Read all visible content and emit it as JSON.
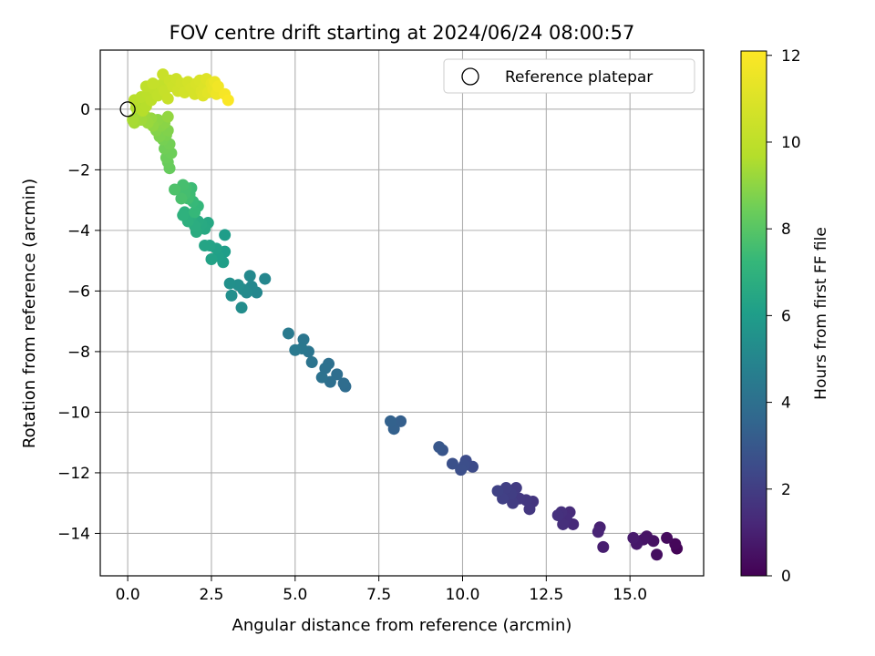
{
  "chart_data": {
    "type": "scatter",
    "title": "FOV centre drift starting at 2024/06/24 08:00:57",
    "xlabel": "Angular distance from reference (arcmin)",
    "ylabel": "Rotation from reference (arcmin)",
    "xlim": [
      -0.82,
      17.2
    ],
    "ylim": [
      -15.4,
      1.95
    ],
    "xticks": [
      0.0,
      2.5,
      5.0,
      7.5,
      10.0,
      12.5,
      15.0
    ],
    "xtick_labels": [
      "0.0",
      "2.5",
      "5.0",
      "7.5",
      "10.0",
      "12.5",
      "15.0"
    ],
    "yticks": [
      0,
      -2,
      -4,
      -6,
      -8,
      -10,
      -12,
      -14
    ],
    "ytick_labels": [
      "0",
      "−2",
      "−4",
      "−6",
      "−8",
      "−10",
      "−12",
      "−14"
    ],
    "grid": true,
    "legend": {
      "placement": "top-right",
      "entries": [
        {
          "label": "Reference platepar",
          "marker": "open-circle"
        }
      ]
    },
    "reference_point": {
      "x": 0.0,
      "y": 0.0
    },
    "colorbar": {
      "label": "Hours from first FF file",
      "colormap": "viridis",
      "range": [
        0,
        12.1
      ],
      "ticks": [
        0,
        2,
        4,
        6,
        8,
        10,
        12
      ],
      "tick_labels": [
        "0",
        "2",
        "4",
        "6",
        "8",
        "10",
        "12"
      ]
    },
    "points": [
      {
        "x": 16.4,
        "y": -14.5,
        "c": 0.1
      },
      {
        "x": 16.35,
        "y": -14.35,
        "c": 0.2
      },
      {
        "x": 16.1,
        "y": -14.15,
        "c": 0.3
      },
      {
        "x": 15.8,
        "y": -14.7,
        "c": 0.4
      },
      {
        "x": 15.7,
        "y": -14.25,
        "c": 0.5
      },
      {
        "x": 15.5,
        "y": -14.1,
        "c": 0.55
      },
      {
        "x": 15.4,
        "y": -14.2,
        "c": 0.6
      },
      {
        "x": 15.2,
        "y": -14.35,
        "c": 0.7
      },
      {
        "x": 15.1,
        "y": -14.15,
        "c": 0.8
      },
      {
        "x": 14.2,
        "y": -14.45,
        "c": 0.9
      },
      {
        "x": 14.1,
        "y": -13.8,
        "c": 1.0
      },
      {
        "x": 14.05,
        "y": -13.95,
        "c": 1.1
      },
      {
        "x": 13.3,
        "y": -13.7,
        "c": 1.3
      },
      {
        "x": 13.2,
        "y": -13.3,
        "c": 1.35
      },
      {
        "x": 13.1,
        "y": -13.5,
        "c": 1.4
      },
      {
        "x": 13.0,
        "y": -13.7,
        "c": 1.45
      },
      {
        "x": 12.95,
        "y": -13.3,
        "c": 1.5
      },
      {
        "x": 12.85,
        "y": -13.4,
        "c": 1.55
      },
      {
        "x": 12.1,
        "y": -12.95,
        "c": 1.7
      },
      {
        "x": 12.0,
        "y": -13.2,
        "c": 1.75
      },
      {
        "x": 11.9,
        "y": -12.9,
        "c": 1.8
      },
      {
        "x": 11.7,
        "y": -12.85,
        "c": 1.85
      },
      {
        "x": 11.6,
        "y": -12.5,
        "c": 1.9
      },
      {
        "x": 11.5,
        "y": -13.0,
        "c": 1.95
      },
      {
        "x": 11.45,
        "y": -12.7,
        "c": 2.0
      },
      {
        "x": 11.3,
        "y": -12.5,
        "c": 2.05
      },
      {
        "x": 11.2,
        "y": -12.85,
        "c": 2.1
      },
      {
        "x": 11.05,
        "y": -12.6,
        "c": 2.15
      },
      {
        "x": 10.3,
        "y": -11.8,
        "c": 2.5
      },
      {
        "x": 10.1,
        "y": -11.6,
        "c": 2.55
      },
      {
        "x": 10.05,
        "y": -11.75,
        "c": 2.6
      },
      {
        "x": 9.95,
        "y": -11.9,
        "c": 2.65
      },
      {
        "x": 9.7,
        "y": -11.7,
        "c": 2.7
      },
      {
        "x": 9.4,
        "y": -11.25,
        "c": 2.9
      },
      {
        "x": 9.3,
        "y": -11.15,
        "c": 2.95
      },
      {
        "x": 8.15,
        "y": -10.3,
        "c": 3.3
      },
      {
        "x": 7.95,
        "y": -10.55,
        "c": 3.35
      },
      {
        "x": 7.85,
        "y": -10.3,
        "c": 3.4
      },
      {
        "x": 6.5,
        "y": -9.15,
        "c": 3.8
      },
      {
        "x": 6.45,
        "y": -9.05,
        "c": 3.85
      },
      {
        "x": 6.25,
        "y": -8.75,
        "c": 3.9
      },
      {
        "x": 6.05,
        "y": -9.0,
        "c": 3.95
      },
      {
        "x": 6.0,
        "y": -8.4,
        "c": 4.0
      },
      {
        "x": 5.9,
        "y": -8.55,
        "c": 4.05
      },
      {
        "x": 5.8,
        "y": -8.85,
        "c": 4.1
      },
      {
        "x": 5.5,
        "y": -8.35,
        "c": 4.2
      },
      {
        "x": 5.4,
        "y": -8.0,
        "c": 4.25
      },
      {
        "x": 5.25,
        "y": -7.6,
        "c": 4.3
      },
      {
        "x": 5.2,
        "y": -7.9,
        "c": 4.35
      },
      {
        "x": 5.0,
        "y": -7.95,
        "c": 4.4
      },
      {
        "x": 4.8,
        "y": -7.4,
        "c": 4.45
      },
      {
        "x": 4.1,
        "y": -5.6,
        "c": 5.0
      },
      {
        "x": 3.85,
        "y": -6.05,
        "c": 5.05
      },
      {
        "x": 3.7,
        "y": -5.85,
        "c": 5.1
      },
      {
        "x": 3.65,
        "y": -5.5,
        "c": 5.15
      },
      {
        "x": 3.55,
        "y": -6.05,
        "c": 5.2
      },
      {
        "x": 3.45,
        "y": -5.95,
        "c": 5.25
      },
      {
        "x": 3.4,
        "y": -6.55,
        "c": 5.3
      },
      {
        "x": 3.3,
        "y": -5.8,
        "c": 5.35
      },
      {
        "x": 3.1,
        "y": -6.15,
        "c": 5.4
      },
      {
        "x": 3.05,
        "y": -5.75,
        "c": 5.45
      },
      {
        "x": 2.9,
        "y": -4.15,
        "c": 6.0
      },
      {
        "x": 2.9,
        "y": -4.7,
        "c": 6.05
      },
      {
        "x": 2.85,
        "y": -5.05,
        "c": 6.1
      },
      {
        "x": 2.7,
        "y": -4.85,
        "c": 6.15
      },
      {
        "x": 2.65,
        "y": -4.6,
        "c": 6.2
      },
      {
        "x": 2.5,
        "y": -4.95,
        "c": 6.25
      },
      {
        "x": 2.45,
        "y": -4.5,
        "c": 6.3
      },
      {
        "x": 2.3,
        "y": -4.5,
        "c": 6.35
      },
      {
        "x": 2.4,
        "y": -3.75,
        "c": 6.5
      },
      {
        "x": 2.3,
        "y": -3.95,
        "c": 6.55
      },
      {
        "x": 2.2,
        "y": -3.8,
        "c": 6.6
      },
      {
        "x": 2.1,
        "y": -3.7,
        "c": 6.65
      },
      {
        "x": 2.05,
        "y": -4.05,
        "c": 6.7
      },
      {
        "x": 2.0,
        "y": -3.85,
        "c": 6.75
      },
      {
        "x": 1.9,
        "y": -3.55,
        "c": 6.8
      },
      {
        "x": 1.8,
        "y": -3.7,
        "c": 6.85
      },
      {
        "x": 1.7,
        "y": -3.4,
        "c": 6.9
      },
      {
        "x": 1.65,
        "y": -3.5,
        "c": 6.95
      },
      {
        "x": 2.1,
        "y": -3.2,
        "c": 7.2
      },
      {
        "x": 2.0,
        "y": -3.4,
        "c": 7.25
      },
      {
        "x": 1.95,
        "y": -3.05,
        "c": 7.3
      },
      {
        "x": 1.9,
        "y": -2.6,
        "c": 7.4
      },
      {
        "x": 1.85,
        "y": -2.8,
        "c": 7.45
      },
      {
        "x": 1.8,
        "y": -2.95,
        "c": 7.5
      },
      {
        "x": 1.75,
        "y": -2.6,
        "c": 7.55
      },
      {
        "x": 1.7,
        "y": -2.8,
        "c": 7.6
      },
      {
        "x": 1.65,
        "y": -2.5,
        "c": 7.65
      },
      {
        "x": 1.6,
        "y": -2.95,
        "c": 7.7
      },
      {
        "x": 1.4,
        "y": -2.65,
        "c": 7.8
      },
      {
        "x": 1.25,
        "y": -1.95,
        "c": 8.3
      },
      {
        "x": 1.2,
        "y": -1.75,
        "c": 8.35
      },
      {
        "x": 1.15,
        "y": -1.6,
        "c": 8.4
      },
      {
        "x": 1.3,
        "y": -1.45,
        "c": 8.45
      },
      {
        "x": 1.1,
        "y": -1.3,
        "c": 8.5
      },
      {
        "x": 1.25,
        "y": -1.15,
        "c": 8.55
      },
      {
        "x": 1.05,
        "y": -1.0,
        "c": 8.6
      },
      {
        "x": 1.15,
        "y": -0.85,
        "c": 8.7
      },
      {
        "x": 0.95,
        "y": -0.9,
        "c": 8.75
      },
      {
        "x": 1.2,
        "y": -0.7,
        "c": 8.8
      },
      {
        "x": 0.85,
        "y": -0.7,
        "c": 8.85
      },
      {
        "x": 1.0,
        "y": -0.55,
        "c": 8.9
      },
      {
        "x": 1.1,
        "y": -0.45,
        "c": 8.95
      },
      {
        "x": 0.9,
        "y": -0.35,
        "c": 9.0
      },
      {
        "x": 0.75,
        "y": -0.55,
        "c": 9.05
      },
      {
        "x": 1.2,
        "y": -0.25,
        "c": 9.1
      },
      {
        "x": 0.7,
        "y": -0.3,
        "c": 9.15
      },
      {
        "x": 0.6,
        "y": -0.45,
        "c": 9.2
      },
      {
        "x": 0.5,
        "y": -0.2,
        "c": 9.25
      },
      {
        "x": 0.4,
        "y": -0.35,
        "c": 9.3
      },
      {
        "x": 0.3,
        "y": -0.15,
        "c": 9.35
      },
      {
        "x": 0.2,
        "y": -0.45,
        "c": 9.4
      },
      {
        "x": 0.15,
        "y": -0.35,
        "c": 9.45
      },
      {
        "x": 0.25,
        "y": 0.05,
        "c": 9.6
      },
      {
        "x": 0.35,
        "y": 0.15,
        "c": 9.65
      },
      {
        "x": 0.45,
        "y": -0.05,
        "c": 9.7
      },
      {
        "x": 0.55,
        "y": 0.1,
        "c": 9.75
      },
      {
        "x": 0.2,
        "y": 0.3,
        "c": 9.8
      },
      {
        "x": 0.4,
        "y": 0.4,
        "c": 9.85
      },
      {
        "x": 0.6,
        "y": 0.5,
        "c": 9.9
      },
      {
        "x": 0.7,
        "y": 0.3,
        "c": 9.95
      },
      {
        "x": 0.55,
        "y": 0.75,
        "c": 10.0
      },
      {
        "x": 0.8,
        "y": 0.65,
        "c": 10.05
      },
      {
        "x": 0.9,
        "y": 0.45,
        "c": 10.1
      },
      {
        "x": 1.0,
        "y": 0.8,
        "c": 10.15
      },
      {
        "x": 0.75,
        "y": 0.85,
        "c": 10.2
      },
      {
        "x": 1.1,
        "y": 0.6,
        "c": 10.25
      },
      {
        "x": 1.2,
        "y": 0.35,
        "c": 10.3
      },
      {
        "x": 1.05,
        "y": 1.15,
        "c": 10.35
      },
      {
        "x": 1.25,
        "y": 0.95,
        "c": 10.4
      },
      {
        "x": 1.35,
        "y": 0.75,
        "c": 10.45
      },
      {
        "x": 1.45,
        "y": 1.0,
        "c": 10.5
      },
      {
        "x": 1.5,
        "y": 0.6,
        "c": 10.55
      },
      {
        "x": 1.6,
        "y": 0.85,
        "c": 10.6
      },
      {
        "x": 1.7,
        "y": 0.55,
        "c": 10.65
      },
      {
        "x": 1.8,
        "y": 0.9,
        "c": 10.7
      },
      {
        "x": 1.9,
        "y": 0.7,
        "c": 10.75
      },
      {
        "x": 2.0,
        "y": 0.5,
        "c": 10.8
      },
      {
        "x": 2.05,
        "y": 0.85,
        "c": 10.85
      },
      {
        "x": 2.15,
        "y": 0.95,
        "c": 10.9
      },
      {
        "x": 2.2,
        "y": 0.6,
        "c": 10.95
      },
      {
        "x": 2.3,
        "y": 0.75,
        "c": 11.0
      },
      {
        "x": 2.25,
        "y": 0.45,
        "c": 11.05
      },
      {
        "x": 2.35,
        "y": 1.0,
        "c": 11.1
      },
      {
        "x": 2.4,
        "y": 0.55,
        "c": 11.2
      },
      {
        "x": 2.5,
        "y": 0.85,
        "c": 11.3
      },
      {
        "x": 2.55,
        "y": 0.65,
        "c": 11.4
      },
      {
        "x": 2.6,
        "y": 0.9,
        "c": 11.5
      },
      {
        "x": 2.65,
        "y": 0.5,
        "c": 11.6
      },
      {
        "x": 2.7,
        "y": 0.75,
        "c": 11.7
      },
      {
        "x": 2.9,
        "y": 0.5,
        "c": 11.85
      },
      {
        "x": 3.0,
        "y": 0.3,
        "c": 12.0
      }
    ]
  }
}
